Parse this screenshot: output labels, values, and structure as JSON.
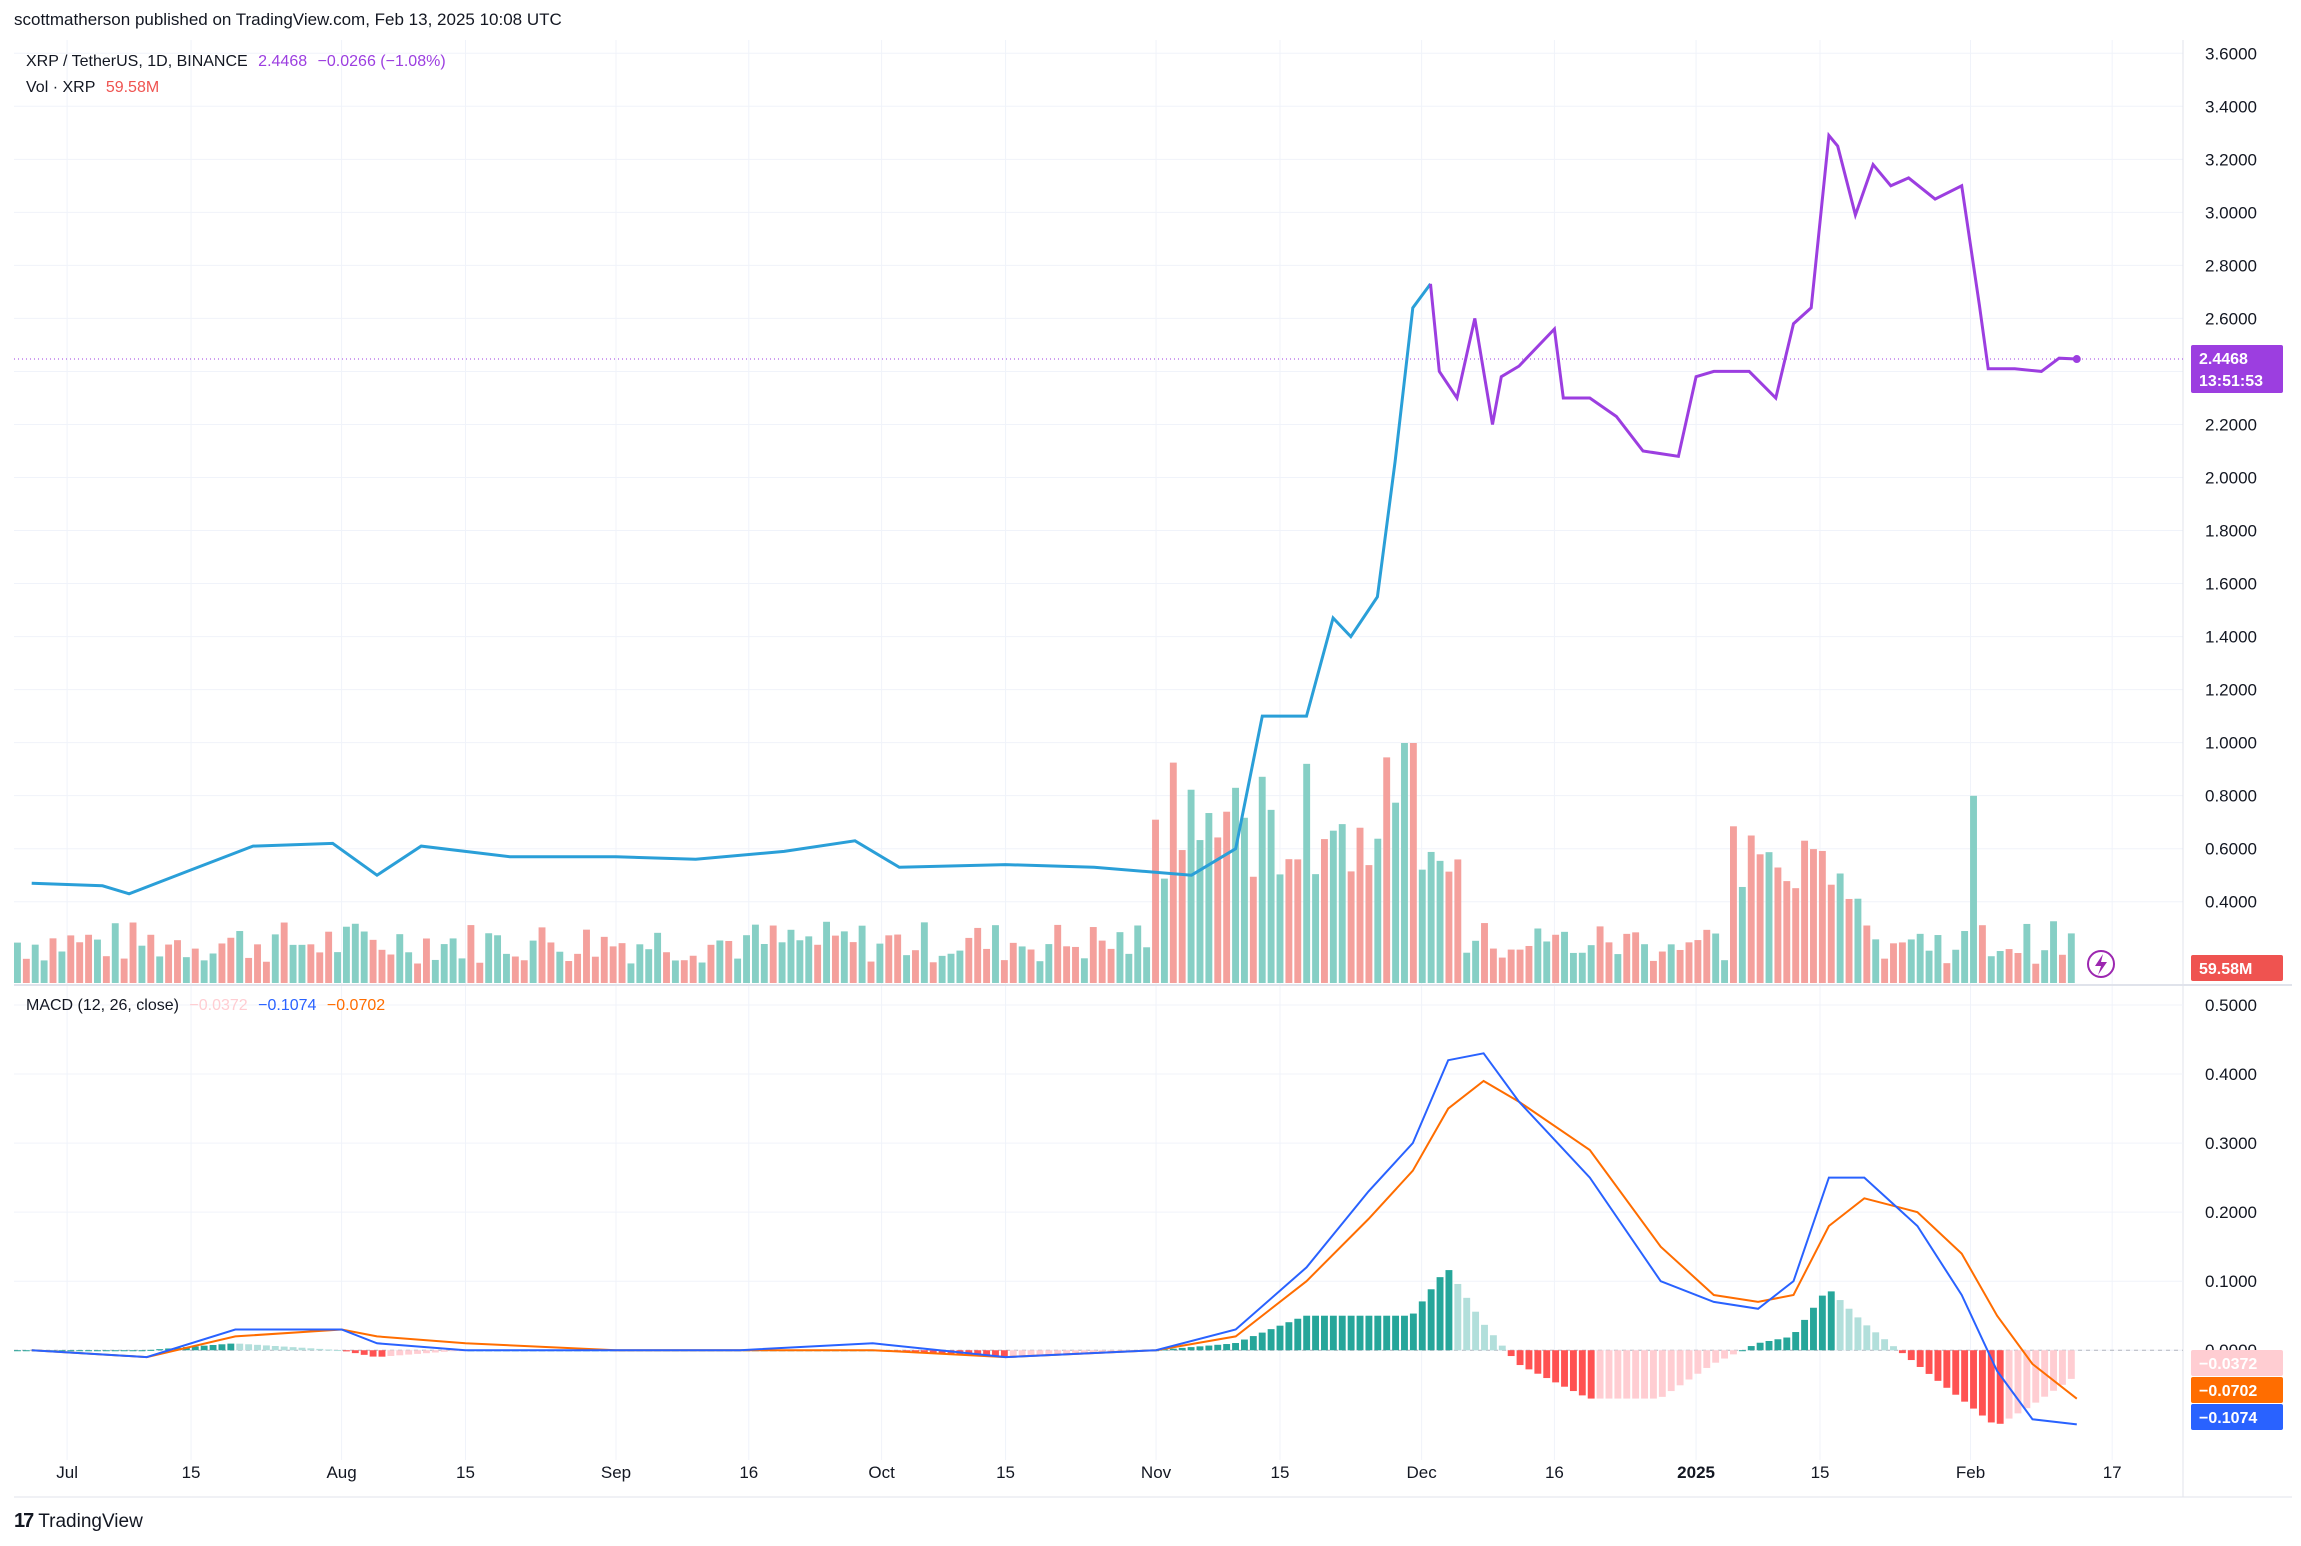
{
  "header": {
    "publisher_line": "scottmatherson published on TradingView.com, Feb 13, 2025 10:08 UTC"
  },
  "legend_main": {
    "symbol": "XRP / TetherUS, 1D, BINANCE",
    "price": "2.4468",
    "change": "−0.0266 (−1.08%)",
    "vol_label": "Vol · XRP",
    "vol_value": "59.58M"
  },
  "legend_macd": {
    "label": "MACD (12, 26, close)",
    "hist": "−0.0372",
    "macd": "−0.1074",
    "signal": "−0.0702"
  },
  "tags": {
    "price": "2.4468",
    "countdown": "13:51:53",
    "volume": "59.58M",
    "hist": "−0.0372",
    "signal": "−0.0702",
    "macd": "−0.1074"
  },
  "footer": {
    "brand": "TradingView",
    "logo_mark": "17"
  },
  "colors": {
    "price_line_blue": "#2a9fd8",
    "price_line_purple": "#9c3ee0",
    "vol_up": "#86cfc5",
    "vol_down": "#f4a09c",
    "macd_line": "#2962ff",
    "signal_line": "#ff6d00",
    "hist_up_strong": "#26a69a",
    "hist_up_weak": "#b2dfdb",
    "hist_down_strong": "#ff5252",
    "hist_down_weak": "#ffcdd2",
    "volume_tag": "#ef5350",
    "price_tag": "#9c3ee0"
  },
  "chart_data": [
    {
      "type": "line",
      "title": "XRP / TetherUS, 1D, BINANCE",
      "x_ticks": [
        "Jul",
        "15",
        "Aug",
        "15",
        "Sep",
        "16",
        "Oct",
        "15",
        "Nov",
        "15",
        "Dec",
        "16",
        "2025",
        "15",
        "Feb",
        "17"
      ],
      "y_ticks": [
        "3.6000",
        "3.4000",
        "3.2000",
        "3.0000",
        "2.8000",
        "2.6000",
        "2.4000",
        "2.2000",
        "2.0000",
        "1.8000",
        "1.6000",
        "1.4000",
        "1.2000",
        "1.0000",
        "0.8000",
        "0.6000",
        "0.4000"
      ],
      "ylim": [
        0.35,
        3.65
      ],
      "x": [
        "2024-06-27",
        "2024-07-05",
        "2024-07-08",
        "2024-07-15",
        "2024-07-22",
        "2024-07-31",
        "2024-08-05",
        "2024-08-10",
        "2024-08-20",
        "2024-09-01",
        "2024-09-10",
        "2024-09-20",
        "2024-09-28",
        "2024-10-03",
        "2024-10-15",
        "2024-10-25",
        "2024-11-05",
        "2024-11-10",
        "2024-11-13",
        "2024-11-16",
        "2024-11-18",
        "2024-11-21",
        "2024-11-23",
        "2024-11-26",
        "2024-11-28",
        "2024-11-30",
        "2024-12-02",
        "2024-12-03",
        "2024-12-05",
        "2024-12-07",
        "2024-12-09",
        "2024-12-10",
        "2024-12-12",
        "2024-12-16",
        "2024-12-17",
        "2024-12-20",
        "2024-12-23",
        "2024-12-26",
        "2024-12-30",
        "2025-01-01",
        "2025-01-03",
        "2025-01-07",
        "2025-01-10",
        "2025-01-12",
        "2025-01-14",
        "2025-01-16",
        "2025-01-17",
        "2025-01-19",
        "2025-01-21",
        "2025-01-23",
        "2025-01-25",
        "2025-01-28",
        "2025-01-31",
        "2025-02-02",
        "2025-02-03",
        "2025-02-06",
        "2025-02-09",
        "2025-02-11",
        "2025-02-13"
      ],
      "series": [
        {
          "values": [
            0.47,
            0.46,
            0.43,
            0.52,
            0.61,
            0.62,
            0.5,
            0.61,
            0.57,
            0.57,
            0.56,
            0.59,
            0.63,
            0.53,
            0.54,
            0.53,
            0.5,
            0.6,
            1.1,
            1.1,
            1.1,
            1.47,
            1.4,
            1.55,
            2.06,
            2.64,
            2.73,
            2.4,
            2.3,
            2.6,
            2.2,
            2.38,
            2.42,
            2.56,
            2.3,
            2.3,
            2.23,
            2.1,
            2.08,
            2.38,
            2.4,
            2.4,
            2.3,
            2.58,
            2.64,
            3.29,
            3.25,
            2.99,
            3.18,
            3.1,
            3.13,
            3.05,
            3.1,
            2.65,
            2.41,
            2.41,
            2.4,
            2.45,
            2.4468
          ]
        }
      ]
    },
    {
      "type": "bar",
      "title": "Vol · XRP",
      "note": "daily volume bars, heights read relative to the max bar",
      "last_value": "59.58M"
    },
    {
      "type": "line",
      "title": "MACD (12, 26, close)",
      "y_ticks": [
        "0.5000",
        "0.4000",
        "0.3000",
        "0.2000",
        "0.1000",
        "0.0000"
      ],
      "ylim": [
        -0.13,
        0.5
      ],
      "x": [
        "2024-06-27",
        "2024-07-10",
        "2024-07-20",
        "2024-08-01",
        "2024-08-05",
        "2024-08-15",
        "2024-09-01",
        "2024-09-15",
        "2024-09-30",
        "2024-10-15",
        "2024-11-01",
        "2024-11-10",
        "2024-11-18",
        "2024-11-25",
        "2024-11-30",
        "2024-12-04",
        "2024-12-08",
        "2024-12-12",
        "2024-12-20",
        "2024-12-28",
        "2025-01-03",
        "2025-01-08",
        "2025-01-12",
        "2025-01-16",
        "2025-01-20",
        "2025-01-26",
        "2025-01-31",
        "2025-02-04",
        "2025-02-08",
        "2025-02-13"
      ],
      "series": [
        {
          "name": "MACD",
          "values": [
            0.0,
            -0.01,
            0.03,
            0.03,
            0.01,
            0.0,
            0.0,
            0.0,
            0.01,
            -0.01,
            0.0,
            0.03,
            0.12,
            0.23,
            0.3,
            0.42,
            0.43,
            0.36,
            0.25,
            0.1,
            0.07,
            0.06,
            0.1,
            0.25,
            0.25,
            0.18,
            0.08,
            -0.03,
            -0.1,
            -0.1074
          ]
        },
        {
          "name": "Signal",
          "values": [
            0.0,
            -0.01,
            0.02,
            0.03,
            0.02,
            0.01,
            0.0,
            0.0,
            0.0,
            -0.01,
            0.0,
            0.02,
            0.1,
            0.19,
            0.26,
            0.35,
            0.39,
            0.36,
            0.29,
            0.15,
            0.08,
            0.07,
            0.08,
            0.18,
            0.22,
            0.2,
            0.14,
            0.05,
            -0.02,
            -0.0702
          ]
        },
        {
          "name": "Histogram",
          "values": [
            0.0,
            0.0,
            0.01,
            0.0,
            -0.01,
            0.0,
            0.0,
            0.0,
            0.0,
            -0.01,
            0.0,
            0.01,
            0.05,
            0.05,
            0.05,
            0.12,
            0.04,
            -0.02,
            -0.07,
            -0.07,
            -0.02,
            0.01,
            0.02,
            0.09,
            0.04,
            -0.02,
            -0.07,
            -0.11,
            -0.08,
            -0.0372
          ]
        }
      ]
    }
  ]
}
